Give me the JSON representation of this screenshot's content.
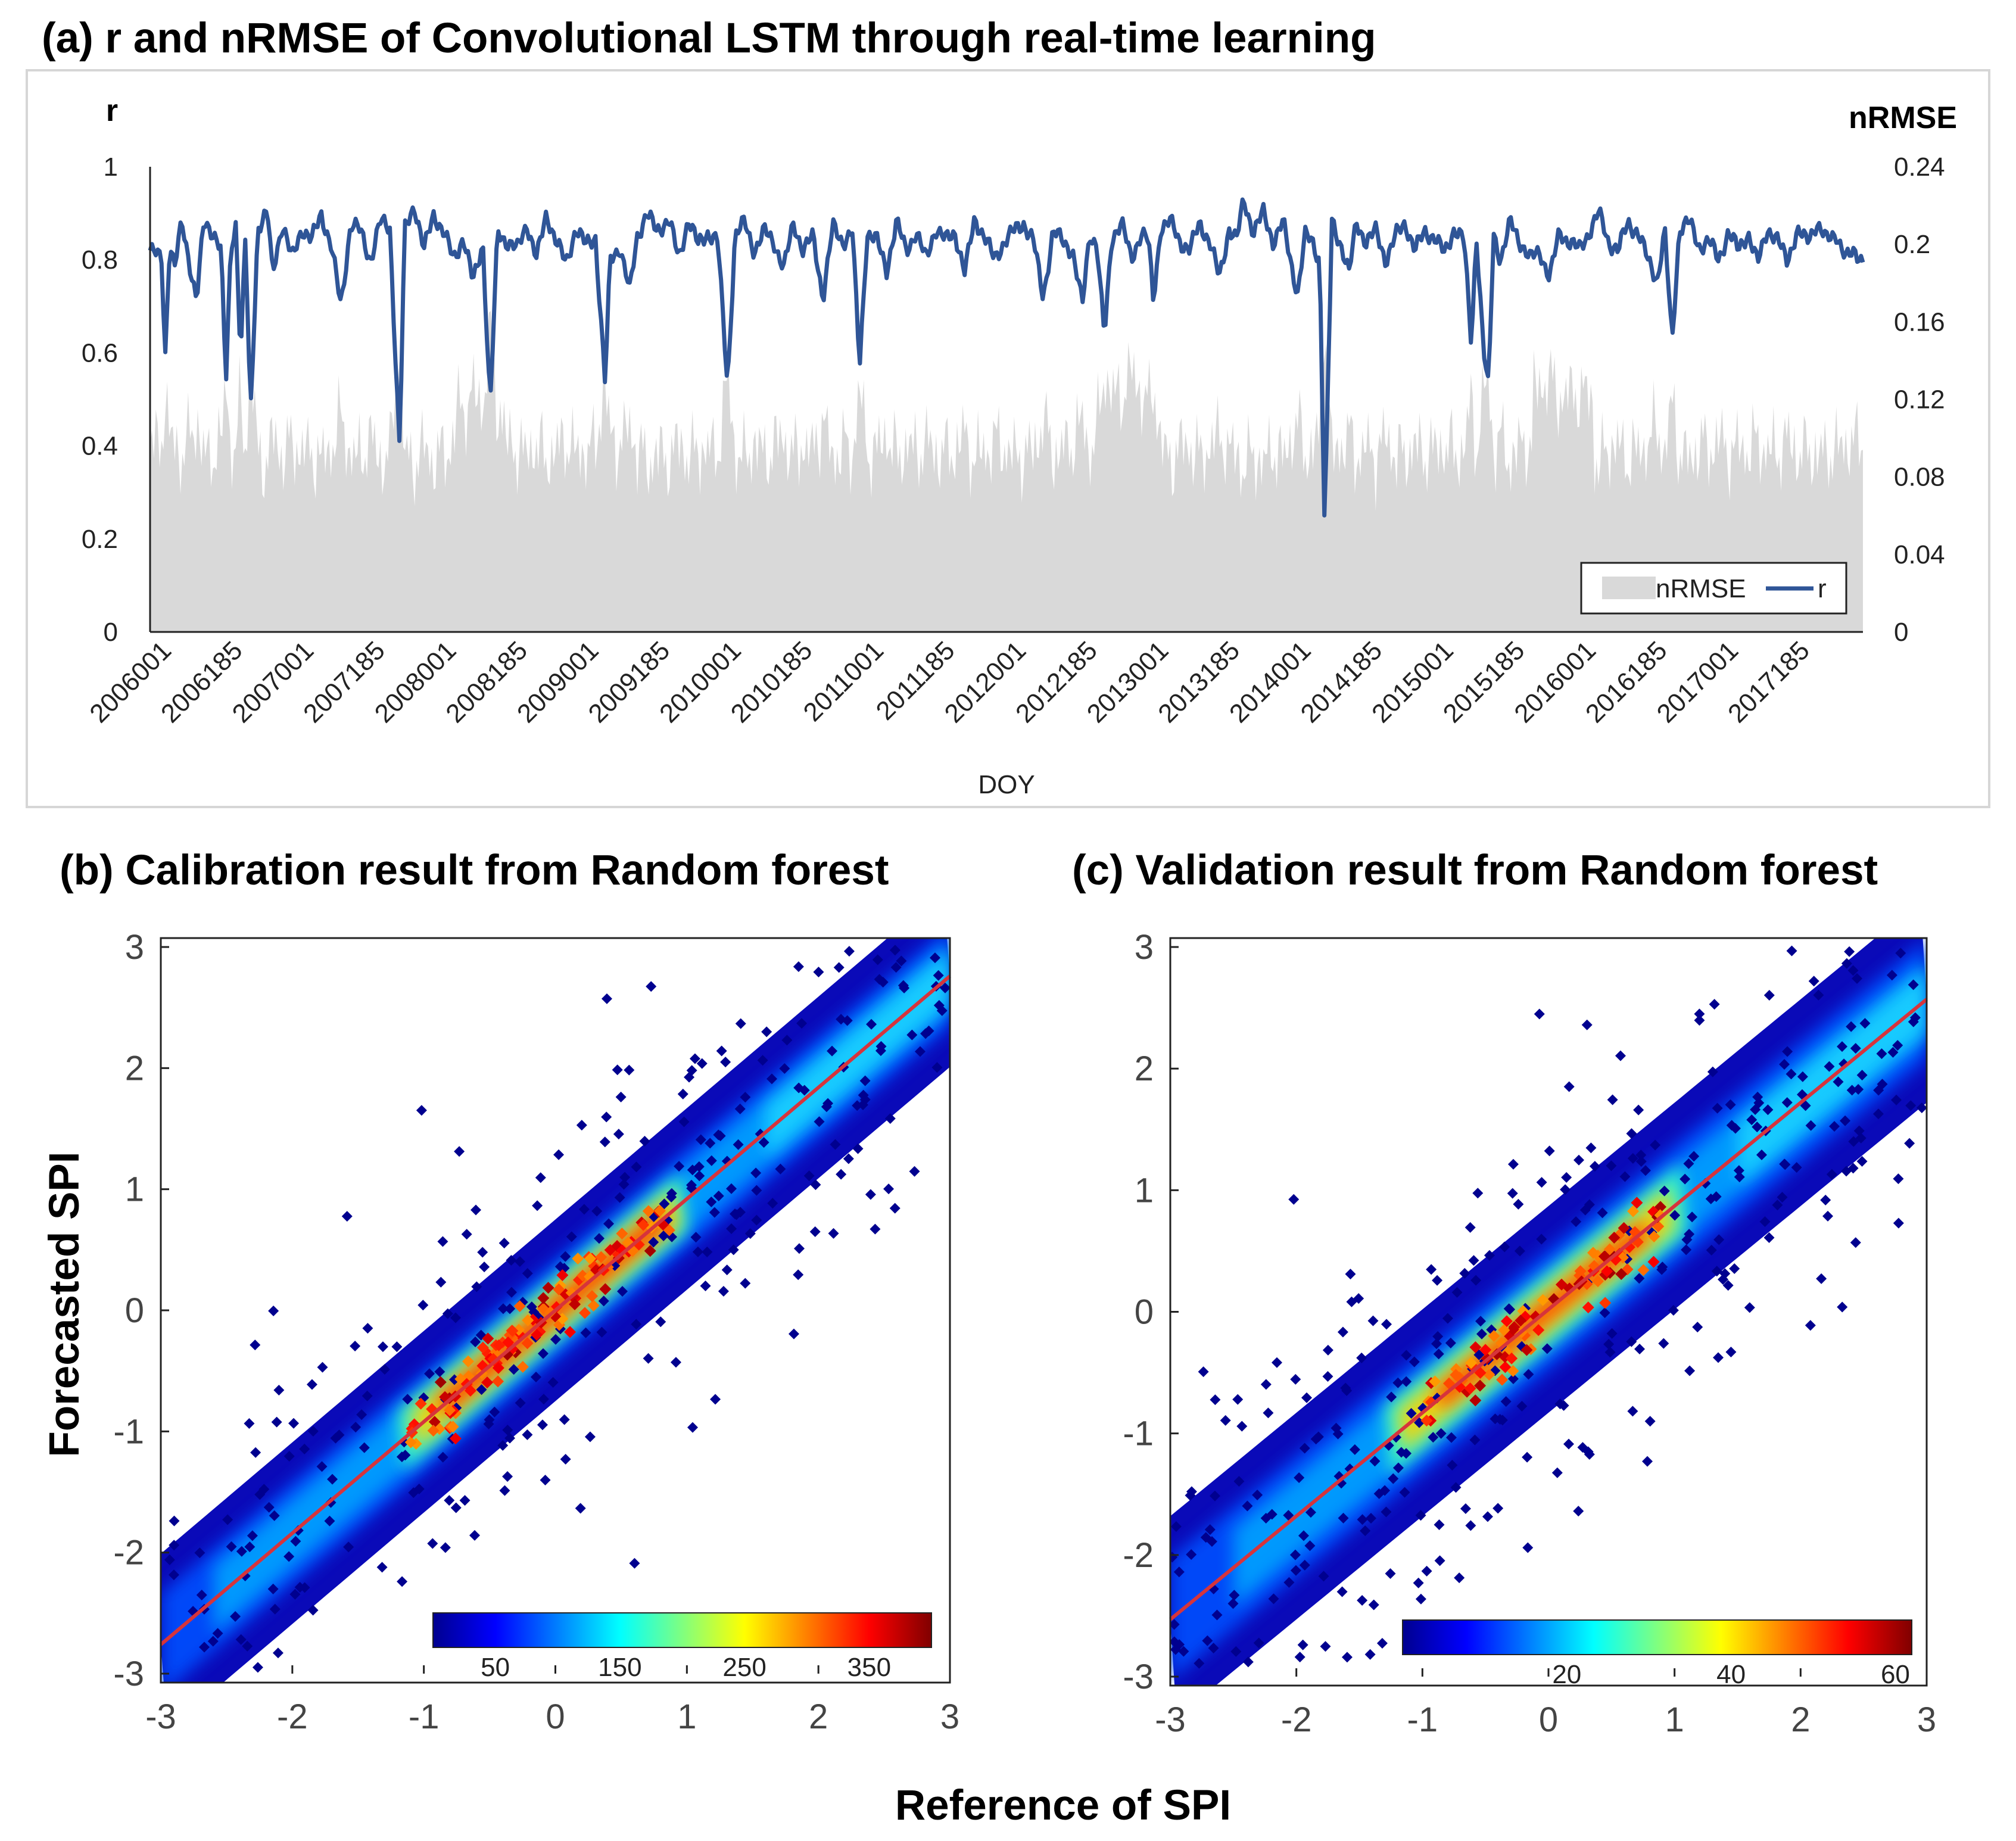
{
  "colors": {
    "r_line": "#2f5597",
    "nrmse_fill": "#d9d9d9",
    "fit_line": "#d6343c",
    "background": "#ffffff"
  },
  "chart_data": [
    {
      "id": "a",
      "type": "area+line",
      "title": "(a) r and nRMSE of Convolutional LSTM through real-time learning",
      "xlabel": "DOY",
      "ylabel_left": "r",
      "ylabel_right": "nRMSE",
      "ylim_left": [
        0,
        1
      ],
      "ylim_right": [
        0,
        0.24
      ],
      "yticks_left": [
        "0",
        "0.2",
        "0.4",
        "0.6",
        "0.8",
        "1"
      ],
      "yticks_right": [
        "0",
        "0.04",
        "0.08",
        "0.12",
        "0.16",
        "0.2",
        "0.24"
      ],
      "xticks": [
        "2006001",
        "2006185",
        "2007001",
        "2007185",
        "2008001",
        "2008185",
        "2009001",
        "2009185",
        "2010001",
        "2010185",
        "2011001",
        "2011185",
        "2012001",
        "2012185",
        "2013001",
        "2013185",
        "2014001",
        "2014185",
        "2015001",
        "2015185",
        "2016001",
        "2016185",
        "2017001",
        "2017185"
      ],
      "legend": [
        "nRMSE",
        "r"
      ],
      "legend_position": "bottom-right",
      "r_anchor_points": [
        [
          0.0,
          0.82
        ],
        [
          0.5,
          0.8
        ],
        [
          0.6,
          0.57
        ],
        [
          0.8,
          0.84
        ],
        [
          1.0,
          0.78
        ],
        [
          1.3,
          0.88
        ],
        [
          1.6,
          0.8
        ],
        [
          1.9,
          0.71
        ],
        [
          2.2,
          0.88
        ],
        [
          2.6,
          0.86
        ],
        [
          2.9,
          0.82
        ],
        [
          3.1,
          0.53
        ],
        [
          3.3,
          0.83
        ],
        [
          3.5,
          0.88
        ],
        [
          3.7,
          0.59
        ],
        [
          3.9,
          0.85
        ],
        [
          4.1,
          0.46
        ],
        [
          4.4,
          0.87
        ],
        [
          4.8,
          0.9
        ],
        [
          5.0,
          0.77
        ],
        [
          5.4,
          0.88
        ],
        [
          5.8,
          0.8
        ],
        [
          6.2,
          0.87
        ],
        [
          6.6,
          0.84
        ],
        [
          7.0,
          0.9
        ],
        [
          7.4,
          0.83
        ],
        [
          7.8,
          0.7
        ],
        [
          8.2,
          0.88
        ],
        [
          8.6,
          0.86
        ],
        [
          9.0,
          0.8
        ],
        [
          9.4,
          0.88
        ],
        [
          9.8,
          0.87
        ],
        [
          10.2,
          0.39
        ],
        [
          10.4,
          0.86
        ],
        [
          10.8,
          0.92
        ],
        [
          11.2,
          0.82
        ],
        [
          11.6,
          0.9
        ],
        [
          12.0,
          0.86
        ],
        [
          12.4,
          0.8
        ],
        [
          12.8,
          0.85
        ],
        [
          13.2,
          0.75
        ],
        [
          13.6,
          0.84
        ],
        [
          13.9,
          0.48
        ],
        [
          14.2,
          0.86
        ],
        [
          14.6,
          0.84
        ],
        [
          15.0,
          0.82
        ],
        [
          15.4,
          0.88
        ],
        [
          15.8,
          0.8
        ],
        [
          16.2,
          0.9
        ],
        [
          16.6,
          0.84
        ],
        [
          17.0,
          0.79
        ],
        [
          17.4,
          0.87
        ],
        [
          17.8,
          0.83
        ],
        [
          18.2,
          0.85
        ],
        [
          18.6,
          0.53
        ],
        [
          18.8,
          0.8
        ],
        [
          19.2,
          0.83
        ],
        [
          19.6,
          0.73
        ],
        [
          19.9,
          0.85
        ],
        [
          20.3,
          0.9
        ],
        [
          20.7,
          0.86
        ],
        [
          21.2,
          0.89
        ],
        [
          21.6,
          0.8
        ],
        [
          22.0,
          0.89
        ],
        [
          22.4,
          0.83
        ],
        [
          22.8,
          0.86
        ],
        [
          23.2,
          0.84
        ],
        [
          23.6,
          0.53
        ],
        [
          23.9,
          0.85
        ],
        [
          24.3,
          0.88
        ],
        [
          24.7,
          0.82
        ],
        [
          25.1,
          0.86
        ],
        [
          25.5,
          0.84
        ],
        [
          25.9,
          0.78
        ],
        [
          26.3,
          0.88
        ],
        [
          26.7,
          0.82
        ],
        [
          27.1,
          0.85
        ],
        [
          27.5,
          0.72
        ],
        [
          27.9,
          0.87
        ],
        [
          28.3,
          0.84
        ],
        [
          28.7,
          0.86
        ],
        [
          29.0,
          0.57
        ],
        [
          29.3,
          0.86
        ],
        [
          29.7,
          0.84
        ],
        [
          30.1,
          0.78
        ],
        [
          30.5,
          0.88
        ],
        [
          30.9,
          0.82
        ],
        [
          31.3,
          0.86
        ],
        [
          31.7,
          0.8
        ],
        [
          32.1,
          0.87
        ],
        [
          32.5,
          0.84
        ],
        [
          32.9,
          0.86
        ],
        [
          33.3,
          0.77
        ],
        [
          33.7,
          0.89
        ],
        [
          34.1,
          0.85
        ],
        [
          34.5,
          0.8
        ],
        [
          34.9,
          0.84
        ],
        [
          35.3,
          0.86
        ],
        [
          35.7,
          0.88
        ],
        [
          36.1,
          0.84
        ],
        [
          36.5,
          0.72
        ],
        [
          36.9,
          0.86
        ],
        [
          37.3,
          0.84
        ],
        [
          37.7,
          0.82
        ],
        [
          38.1,
          0.7
        ],
        [
          38.4,
          0.86
        ],
        [
          38.7,
          0.83
        ],
        [
          39.0,
          0.63
        ],
        [
          39.3,
          0.85
        ],
        [
          39.7,
          0.88
        ],
        [
          40.1,
          0.8
        ],
        [
          40.5,
          0.86
        ],
        [
          40.8,
          0.84
        ],
        [
          41.0,
          0.71
        ],
        [
          41.3,
          0.87
        ],
        [
          41.7,
          0.88
        ],
        [
          42.1,
          0.84
        ],
        [
          42.5,
          0.82
        ],
        [
          42.9,
          0.88
        ],
        [
          43.3,
          0.84
        ],
        [
          43.7,
          0.76
        ],
        [
          44.1,
          0.87
        ],
        [
          44.4,
          0.84
        ],
        [
          44.7,
          0.93
        ],
        [
          45.1,
          0.86
        ],
        [
          45.5,
          0.9
        ],
        [
          45.9,
          0.84
        ],
        [
          46.3,
          0.88
        ],
        [
          46.6,
          0.8
        ],
        [
          46.9,
          0.73
        ],
        [
          47.2,
          0.85
        ],
        [
          47.5,
          0.84
        ],
        [
          47.8,
          0.8
        ],
        [
          48.0,
          0.22
        ],
        [
          48.3,
          0.88
        ],
        [
          48.7,
          0.83
        ],
        [
          49.0,
          0.77
        ],
        [
          49.3,
          0.88
        ],
        [
          49.7,
          0.84
        ],
        [
          50.1,
          0.86
        ],
        [
          50.5,
          0.8
        ],
        [
          50.9,
          0.85
        ],
        [
          51.3,
          0.88
        ],
        [
          51.7,
          0.82
        ],
        [
          52.1,
          0.86
        ],
        [
          52.5,
          0.85
        ],
        [
          52.9,
          0.81
        ],
        [
          53.3,
          0.87
        ],
        [
          53.7,
          0.84
        ],
        [
          54.0,
          0.62
        ],
        [
          54.2,
          0.86
        ],
        [
          54.5,
          0.6
        ],
        [
          54.7,
          0.52
        ],
        [
          54.9,
          0.86
        ],
        [
          55.2,
          0.8
        ],
        [
          55.6,
          0.88
        ],
        [
          56.0,
          0.84
        ],
        [
          56.4,
          0.8
        ],
        [
          56.8,
          0.82
        ],
        [
          57.2,
          0.76
        ],
        [
          57.6,
          0.86
        ],
        [
          58.0,
          0.84
        ],
        [
          58.4,
          0.82
        ],
        [
          58.8,
          0.86
        ],
        [
          59.2,
          0.9
        ],
        [
          59.6,
          0.84
        ],
        [
          60.0,
          0.82
        ],
        [
          60.4,
          0.88
        ],
        [
          60.8,
          0.86
        ],
        [
          61.2,
          0.8
        ],
        [
          61.6,
          0.76
        ],
        [
          61.9,
          0.86
        ],
        [
          62.2,
          0.62
        ],
        [
          62.5,
          0.87
        ],
        [
          62.9,
          0.88
        ],
        [
          63.3,
          0.83
        ],
        [
          63.7,
          0.84
        ],
        [
          64.1,
          0.8
        ],
        [
          64.5,
          0.86
        ],
        [
          64.9,
          0.82
        ],
        [
          65.3,
          0.86
        ],
        [
          65.7,
          0.79
        ],
        [
          66.1,
          0.87
        ],
        [
          66.5,
          0.84
        ],
        [
          66.9,
          0.8
        ],
        [
          67.3,
          0.86
        ],
        [
          67.7,
          0.84
        ],
        [
          68.1,
          0.88
        ],
        [
          68.5,
          0.84
        ],
        [
          68.9,
          0.86
        ],
        [
          69.3,
          0.8
        ],
        [
          69.7,
          0.82
        ],
        [
          70.0,
          0.8
        ]
      ]
    },
    {
      "id": "b",
      "type": "scatter-density",
      "title": "(b) Calibration result from Random forest",
      "xlabel": "Reference of SPI",
      "ylabel": "Forecasted SPI",
      "xlim": [
        -3,
        3
      ],
      "ylim": [
        -3,
        3
      ],
      "xticks": [
        "-3",
        "-2",
        "-1",
        "0",
        "1",
        "2",
        "3"
      ],
      "yticks": [
        "-3",
        "-2",
        "-1",
        "0",
        "1",
        "2",
        "3"
      ],
      "fit_line": {
        "slope": 0.92,
        "intercept": 0.0
      },
      "colorbar_ticks": [
        "50",
        "150",
        "250",
        "350"
      ],
      "colorbar_range": [
        0,
        400
      ]
    },
    {
      "id": "c",
      "type": "scatter-density",
      "title": "(c) Validation result from Random forest",
      "xlabel": "Reference of SPI",
      "ylabel": "Forecasted SPI",
      "xlim": [
        -3,
        3
      ],
      "ylim": [
        -3,
        3
      ],
      "xticks": [
        "-3",
        "-2",
        "-1",
        "0",
        "1",
        "2",
        "3"
      ],
      "yticks": [
        "-3",
        "-2",
        "-1",
        "0",
        "1",
        "2",
        "3"
      ],
      "fit_line": {
        "slope": 0.85,
        "intercept": 0.02
      },
      "colorbar_ticks": [
        "20",
        "40",
        "60"
      ],
      "colorbar_range": [
        0,
        62
      ]
    }
  ],
  "shared_labels": {
    "xlabel": "Reference of SPI",
    "ylabel": "Forecasted SPI"
  }
}
